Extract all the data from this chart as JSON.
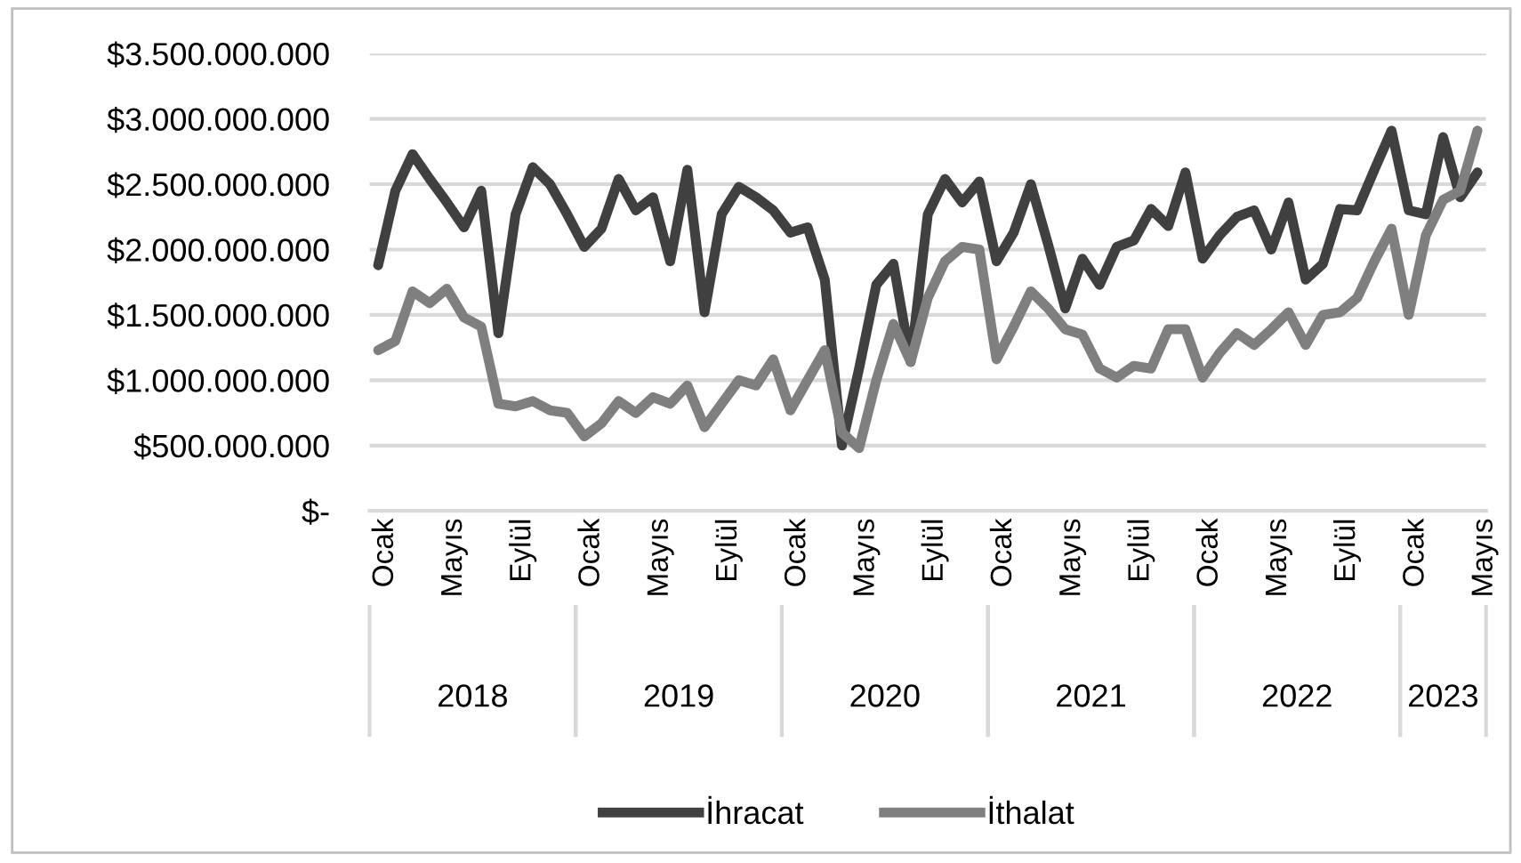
{
  "chart_data": {
    "type": "line",
    "categories": [
      "Ocak",
      null,
      null,
      null,
      "Mayıs",
      null,
      null,
      null,
      "Eylül",
      null,
      null,
      null,
      "Ocak",
      null,
      null,
      null,
      "Mayıs",
      null,
      null,
      null,
      "Eylül",
      null,
      null,
      null,
      "Ocak",
      null,
      null,
      null,
      "Mayıs",
      null,
      null,
      null,
      "Eylül",
      null,
      null,
      null,
      "Ocak",
      null,
      null,
      null,
      "Mayıs",
      null,
      null,
      null,
      "Eylül",
      null,
      null,
      null,
      "Ocak",
      null,
      null,
      null,
      "Mayıs",
      null,
      null,
      null,
      "Eylül",
      null,
      null,
      null,
      "Ocak",
      null,
      null,
      null,
      "Mayıs"
    ],
    "annotations": [
      "2018",
      "2019",
      "2020",
      "2021",
      "2022",
      "2023"
    ],
    "series": [
      {
        "name": "İhracat",
        "color": "#404040",
        "values": [
          1880000000,
          2450000000,
          2730000000,
          2540000000,
          2360000000,
          2170000000,
          2450000000,
          1360000000,
          2270000000,
          2630000000,
          2500000000,
          2270000000,
          2020000000,
          2160000000,
          2540000000,
          2300000000,
          2400000000,
          1910000000,
          2610000000,
          1520000000,
          2270000000,
          2480000000,
          2400000000,
          2300000000,
          2130000000,
          2170000000,
          1770000000,
          500000000,
          1090000000,
          1730000000,
          1890000000,
          1140000000,
          2270000000,
          2540000000,
          2360000000,
          2520000000,
          1910000000,
          2130000000,
          2500000000,
          2040000000,
          1550000000,
          1930000000,
          1730000000,
          2020000000,
          2070000000,
          2310000000,
          2180000000,
          2590000000,
          1930000000,
          2110000000,
          2250000000,
          2300000000,
          2000000000,
          2360000000,
          1770000000,
          1890000000,
          2310000000,
          2300000000,
          2610000000,
          2910000000,
          2300000000,
          2270000000,
          2860000000,
          2400000000,
          2590000000
        ]
      },
      {
        "name": "İthalat",
        "color": "#7f7f7f",
        "values": [
          1230000000,
          1300000000,
          1680000000,
          1590000000,
          1700000000,
          1480000000,
          1410000000,
          820000000,
          800000000,
          840000000,
          770000000,
          750000000,
          570000000,
          670000000,
          840000000,
          750000000,
          870000000,
          820000000,
          960000000,
          640000000,
          820000000,
          1000000000,
          960000000,
          1160000000,
          770000000,
          1000000000,
          1230000000,
          600000000,
          480000000,
          1000000000,
          1430000000,
          1140000000,
          1630000000,
          1910000000,
          2020000000,
          2000000000,
          1160000000,
          1410000000,
          1680000000,
          1550000000,
          1390000000,
          1350000000,
          1090000000,
          1020000000,
          1110000000,
          1090000000,
          1390000000,
          1390000000,
          1020000000,
          1210000000,
          1360000000,
          1270000000,
          1390000000,
          1520000000,
          1270000000,
          1500000000,
          1520000000,
          1630000000,
          1910000000,
          2160000000,
          1500000000,
          2110000000,
          2380000000,
          2450000000,
          2910000000
        ]
      }
    ],
    "ylim": [
      0,
      3500000000
    ],
    "yticks": [
      {
        "value": 0,
        "label": "$-"
      },
      {
        "value": 500000000,
        "label": "$500.000.000"
      },
      {
        "value": 1000000000,
        "label": "$1.000.000.000"
      },
      {
        "value": 1500000000,
        "label": "$1.500.000.000"
      },
      {
        "value": 2000000000,
        "label": "$2.000.000.000"
      },
      {
        "value": 2500000000,
        "label": "$2.500.000.000"
      },
      {
        "value": 3000000000,
        "label": "$3.000.000.000"
      },
      {
        "value": 3500000000,
        "label": "$3.500.000.000"
      }
    ],
    "grid": "y",
    "legend": "bottom",
    "line_style": "solid",
    "marker": "none"
  }
}
